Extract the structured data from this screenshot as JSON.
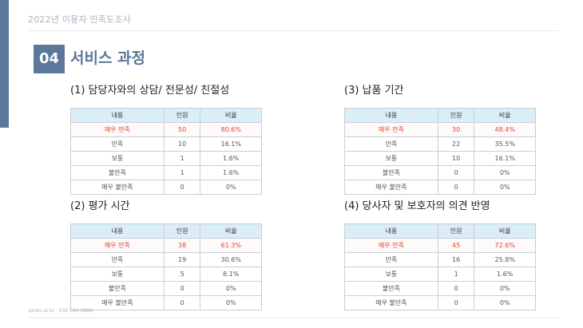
{
  "header": {
    "title": "2022년 이용자 만족도조사"
  },
  "section": {
    "number": "04",
    "title": "서비스 과정"
  },
  "columns": [
    "내용",
    "인원",
    "비율"
  ],
  "panels": [
    {
      "title": "(1) 담당자와의 상담/ 전문성/ 친절성",
      "rows": [
        {
          "label": "매우 만족",
          "count": "50",
          "ratio": "80.6%"
        },
        {
          "label": "만족",
          "count": "10",
          "ratio": "16.1%"
        },
        {
          "label": "보통",
          "count": "1",
          "ratio": "1.6%"
        },
        {
          "label": "불만족",
          "count": "1",
          "ratio": "1.6%"
        },
        {
          "label": "매우 불만족",
          "count": "0",
          "ratio": "0%"
        }
      ]
    },
    {
      "title": "(3) 납품 기간",
      "rows": [
        {
          "label": "매우 만족",
          "count": "30",
          "ratio": "48.4%"
        },
        {
          "label": "만족",
          "count": "22",
          "ratio": "35.5%"
        },
        {
          "label": "보통",
          "count": "10",
          "ratio": "16.1%"
        },
        {
          "label": "불만족",
          "count": "0",
          "ratio": "0%"
        },
        {
          "label": "매우 불만족",
          "count": "0",
          "ratio": "0%"
        }
      ]
    },
    {
      "title": "(2) 평가 시간",
      "rows": [
        {
          "label": "매우 만족",
          "count": "38",
          "ratio": "61.3%"
        },
        {
          "label": "만족",
          "count": "19",
          "ratio": "30.6%"
        },
        {
          "label": "보통",
          "count": "5",
          "ratio": "8.1%"
        },
        {
          "label": "불만족",
          "count": "0",
          "ratio": "0%"
        },
        {
          "label": "매우 불만족",
          "count": "0",
          "ratio": "0%"
        }
      ]
    },
    {
      "title": "(4) 당사자 및 보호자의 의견 반영",
      "rows": [
        {
          "label": "매우 만족",
          "count": "45",
          "ratio": "72.6%"
        },
        {
          "label": "만족",
          "count": "16",
          "ratio": "25.8%"
        },
        {
          "label": "보통",
          "count": "1",
          "ratio": "1.6%"
        },
        {
          "label": "불만족",
          "count": "0",
          "ratio": "0%"
        },
        {
          "label": "매우 불만족",
          "count": "0",
          "ratio": "0%"
        }
      ]
    }
  ],
  "footer": {
    "contact": "pmec.or.kr · 032-540-9989"
  },
  "colors": {
    "accent": "#5b7799",
    "highlight": "#e2452e",
    "header_fill": "#dbeef8"
  }
}
